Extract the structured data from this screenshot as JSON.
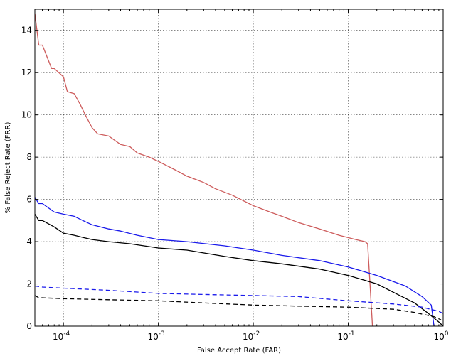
{
  "chart_data": {
    "type": "line",
    "title": "",
    "xlabel": "False Accept Rate (FAR)",
    "ylabel": "% False Reject Rate (FRR)",
    "xscale": "log",
    "xlim": [
      5e-05,
      1
    ],
    "ylim": [
      0,
      15
    ],
    "grid": true,
    "legend": "none",
    "x_ticks": [
      {
        "value": 0.0001,
        "base": "10",
        "exp": "-4"
      },
      {
        "value": 0.001,
        "base": "10",
        "exp": "-3"
      },
      {
        "value": 0.01,
        "base": "10",
        "exp": "-2"
      },
      {
        "value": 0.1,
        "base": "10",
        "exp": "-1"
      },
      {
        "value": 1,
        "base": "10",
        "exp": "0"
      }
    ],
    "y_ticks": [
      "0",
      "2",
      "4",
      "6",
      "8",
      "10",
      "12",
      "14"
    ],
    "series": [
      {
        "color": "#cd5c5c",
        "dash": "solid",
        "x": [
          5e-05,
          5.5e-05,
          6e-05,
          7.5e-05,
          8e-05,
          0.0001,
          0.00011,
          0.00013,
          0.00015,
          0.00017,
          0.0002,
          0.00023,
          0.0003,
          0.0004,
          0.0005,
          0.0006,
          0.0008,
          0.001,
          0.0015,
          0.002,
          0.003,
          0.004,
          0.006,
          0.01,
          0.015,
          0.02,
          0.03,
          0.05,
          0.08,
          0.12,
          0.15,
          0.16,
          0.18
        ],
        "y": [
          14.8,
          13.3,
          13.3,
          12.2,
          12.2,
          11.8,
          11.1,
          11.0,
          10.5,
          10.0,
          9.4,
          9.1,
          9.0,
          8.6,
          8.5,
          8.2,
          8.0,
          7.8,
          7.4,
          7.1,
          6.8,
          6.5,
          6.2,
          5.7,
          5.4,
          5.2,
          4.9,
          4.6,
          4.3,
          4.1,
          4.0,
          3.9,
          0.0
        ]
      },
      {
        "color": "#1a1aeb",
        "dash": "solid",
        "x": [
          5e-05,
          5.5e-05,
          6e-05,
          8e-05,
          0.0001,
          0.00013,
          0.00016,
          0.0002,
          0.0003,
          0.0004,
          0.0006,
          0.001,
          0.002,
          0.005,
          0.01,
          0.02,
          0.05,
          0.1,
          0.2,
          0.4,
          0.6,
          0.75,
          0.8
        ],
        "y": [
          6.1,
          5.8,
          5.8,
          5.4,
          5.3,
          5.2,
          5.0,
          4.8,
          4.6,
          4.5,
          4.3,
          4.1,
          4.0,
          3.8,
          3.6,
          3.35,
          3.1,
          2.8,
          2.4,
          1.9,
          1.4,
          1.0,
          0.0
        ]
      },
      {
        "color": "#000000",
        "dash": "solid",
        "x": [
          5e-05,
          5.5e-05,
          6e-05,
          8e-05,
          0.0001,
          0.00013,
          0.00016,
          0.0002,
          0.0003,
          0.0005,
          0.001,
          0.002,
          0.005,
          0.01,
          0.02,
          0.05,
          0.1,
          0.2,
          0.3,
          0.5,
          0.7,
          0.9,
          1.0
        ],
        "y": [
          5.3,
          5.0,
          5.0,
          4.7,
          4.4,
          4.3,
          4.2,
          4.1,
          4.0,
          3.9,
          3.7,
          3.6,
          3.3,
          3.1,
          2.95,
          2.7,
          2.4,
          2.0,
          1.6,
          1.1,
          0.6,
          0.2,
          0.0
        ]
      },
      {
        "color": "#1a1aeb",
        "dash": "dashed",
        "x": [
          5e-05,
          6e-05,
          0.0001,
          0.0003,
          0.001,
          0.003,
          0.01,
          0.03,
          0.1,
          0.3,
          0.6,
          0.9,
          1.0
        ],
        "y": [
          1.9,
          1.85,
          1.8,
          1.7,
          1.55,
          1.5,
          1.45,
          1.4,
          1.2,
          1.05,
          0.9,
          0.7,
          0.6
        ]
      },
      {
        "color": "#000000",
        "dash": "dashed",
        "x": [
          5e-05,
          5.5e-05,
          0.0001,
          0.0003,
          0.001,
          0.003,
          0.01,
          0.03,
          0.1,
          0.3,
          0.5,
          0.8,
          0.95
        ],
        "y": [
          1.45,
          1.35,
          1.3,
          1.25,
          1.2,
          1.1,
          1.0,
          0.95,
          0.9,
          0.8,
          0.65,
          0.45,
          0.3
        ]
      }
    ]
  }
}
